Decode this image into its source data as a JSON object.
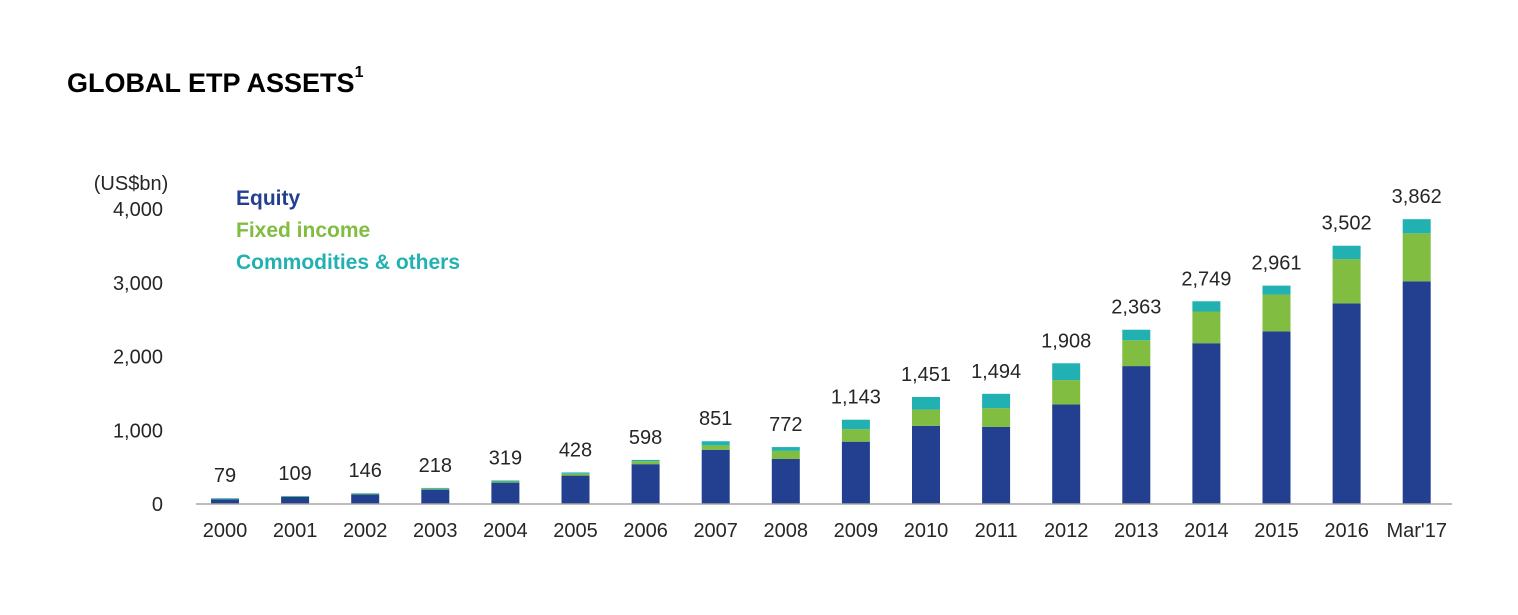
{
  "title": {
    "text": "GLOBAL ETP ASSETS",
    "footnote": "1"
  },
  "chart_data": {
    "type": "bar",
    "stacked": true,
    "y_unit": "(US$bn)",
    "ylim": [
      0,
      4000
    ],
    "yticks": [
      "0",
      "1,000",
      "2,000",
      "3,000",
      "4,000"
    ],
    "categories": [
      "2000",
      "2001",
      "2002",
      "2003",
      "2004",
      "2005",
      "2006",
      "2007",
      "2008",
      "2009",
      "2010",
      "2011",
      "2012",
      "2013",
      "2014",
      "2015",
      "2016",
      "Mar'17"
    ],
    "totals": [
      79,
      109,
      146,
      218,
      319,
      428,
      598,
      851,
      772,
      1143,
      1451,
      1494,
      1908,
      2363,
      2749,
      2961,
      3502,
      3862
    ],
    "total_labels": [
      "79",
      "109",
      "146",
      "218",
      "319",
      "428",
      "598",
      "851",
      "772",
      "1,143",
      "1,451",
      "1,494",
      "1,908",
      "2,363",
      "2,749",
      "2,961",
      "3,502",
      "3,862"
    ],
    "series": [
      {
        "name": "Equity",
        "color": "#233f8f",
        "values": [
          65,
          95,
          130,
          195,
          290,
          385,
          540,
          735,
          610,
          845,
          1060,
          1045,
          1350,
          1870,
          2180,
          2340,
          2720,
          3020
        ]
      },
      {
        "name": "Fixed income",
        "color": "#80bd41",
        "values": [
          4,
          6,
          7,
          12,
          15,
          25,
          40,
          60,
          110,
          170,
          220,
          255,
          330,
          350,
          430,
          500,
          600,
          650
        ]
      },
      {
        "name": "Commodities & others",
        "color": "#22b1b2",
        "values": [
          10,
          8,
          9,
          11,
          14,
          18,
          18,
          56,
          52,
          128,
          171,
          194,
          228,
          143,
          139,
          121,
          182,
          192
        ]
      }
    ],
    "legend_position": "top-left",
    "grid": false
  }
}
